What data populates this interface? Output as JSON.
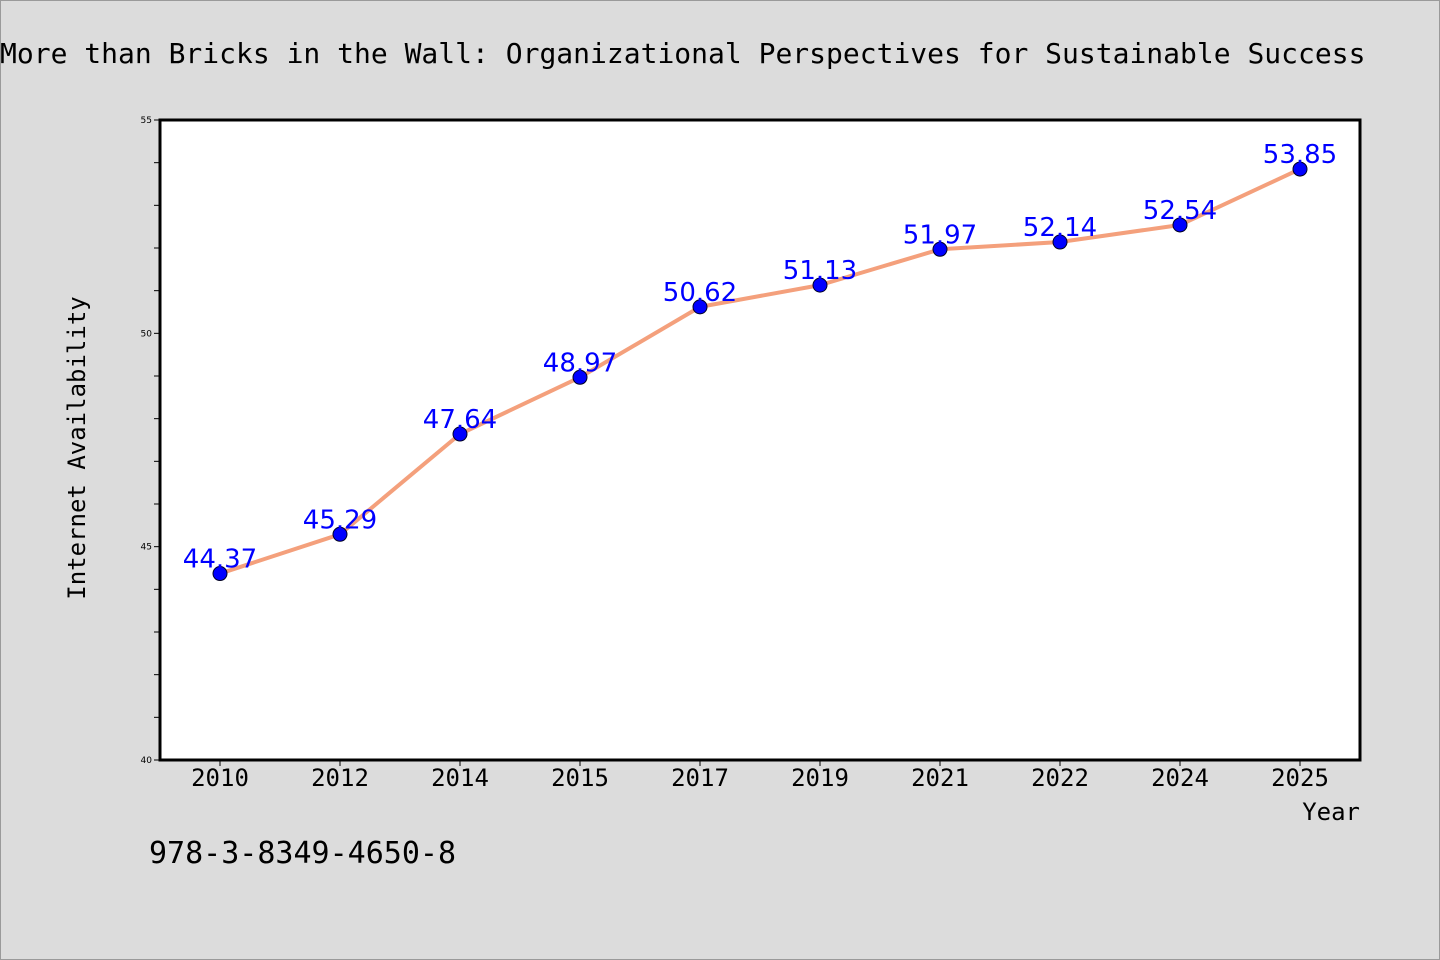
{
  "title": "More than Bricks in the Wall: Organizational Perspectives for Sustainable Success",
  "isbn": "978-3-8349-4650-8",
  "chart_data": {
    "type": "line",
    "categories": [
      "2010",
      "2012",
      "2014",
      "2015",
      "2017",
      "2019",
      "2021",
      "2022",
      "2024",
      "2025"
    ],
    "values": [
      44.37,
      45.29,
      47.64,
      48.97,
      50.62,
      51.13,
      51.97,
      52.14,
      52.54,
      53.85
    ],
    "data_labels": [
      "44.37",
      "45.29",
      "47.64",
      "48.97",
      "50.62",
      "51.13",
      "51.97",
      "52.14",
      "52.54",
      "53.85"
    ],
    "xlabel": "Year",
    "ylabel": "Internet Availability",
    "ylim": [
      40,
      55
    ],
    "yticks": [
      "40",
      "45",
      "50",
      "55"
    ],
    "minor_tick_step": 1,
    "grid": false,
    "line_color": "#f4a07c",
    "marker_color": "#0000ff",
    "label_color": "#0000ff",
    "background_color": "#dcdcdc",
    "plot_background": "#ffffff"
  }
}
